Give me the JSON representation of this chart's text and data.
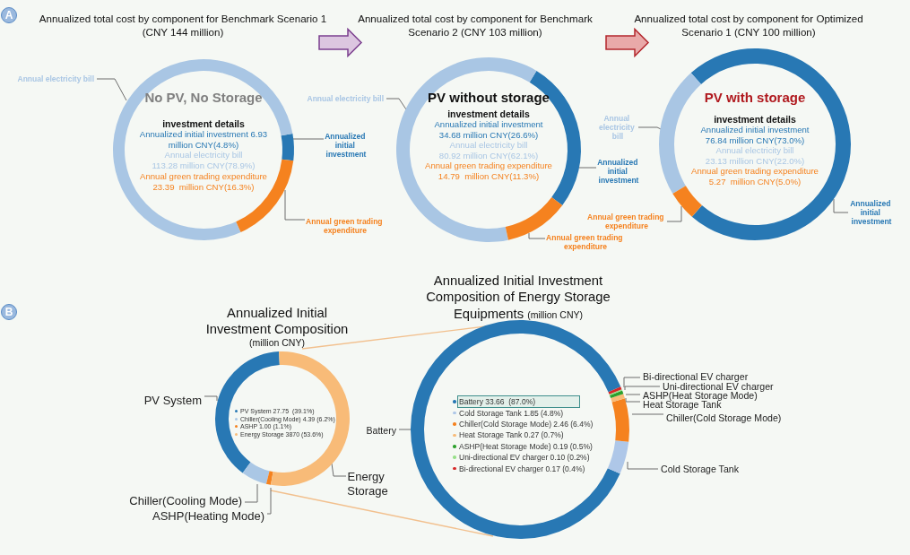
{
  "chart_data": [
    {
      "type": "donut",
      "title": "Annualized total cost by component for Benchmark Scenario 1 (CNY 144 million)",
      "categories": [
        "Annualized initial investment",
        "Annual electricity bill",
        "Annual green trading expenditure"
      ],
      "values": [
        4.8,
        78.9,
        16.3
      ],
      "colors": [
        "#2878b4",
        "#a9c6e4",
        "#f5821f"
      ],
      "annotations": [
        "A",
        "No PV, No Storage",
        "investment details",
        "Annualized initial investment 6.93 million CNY(4.8%)",
        "Annual electricity bill 113.28 million CNY(78.9%)",
        "Annual green trading expenditure 23.39  million CNY(16.3%)"
      ]
    },
    {
      "type": "donut",
      "title": "Annualized total cost by component for Benchmark Scenario 2 (CNY 103 million)",
      "categories": [
        "Annualized initial investment",
        "Annual electricity bill",
        "Annual green trading expenditure"
      ],
      "values": [
        26.6,
        62.1,
        11.3
      ],
      "colors": [
        "#2878b4",
        "#a9c6e4",
        "#f5821f"
      ],
      "annotations": [
        "PV without storage",
        "investment details",
        "Annualized initial investment 34.68 million CNY(26.6%)",
        "Annual electricity bill 80.92 million CNY(62.1%)",
        "Annual green trading expenditure 14.79  million CNY(11.3%)"
      ]
    },
    {
      "type": "donut",
      "title": "Annualized total cost by component for Optimized Scenario 1 (CNY 100 million)",
      "categories": [
        "Annualized initial investment",
        "Annual electricity bill",
        "Annual green trading expenditure"
      ],
      "values": [
        73.0,
        22.0,
        5.0
      ],
      "colors": [
        "#2878b4",
        "#a9c6e4",
        "#f5821f"
      ],
      "annotations": [
        "PV with storage",
        "investment details",
        "Annualized initial investment 76.84 million CNY(73.0%)",
        "Annual electricity bill 23.13 million CNY(22.0%)",
        "Annual green trading expenditure 5.27  million CNY(5.0%)"
      ]
    },
    {
      "type": "donut",
      "title": "Annualized Initial Investment Composition",
      "subtitle": "(million CNY)",
      "categories": [
        "PV System",
        "Chiller(Cooling Mode)",
        "ASHP(Heating Mode)",
        "Energy Storage"
      ],
      "values": [
        39.1,
        6.2,
        1.1,
        53.6
      ],
      "colors": [
        "#2878b4",
        "#aac7e5",
        "#f5821f",
        "#f8bb78"
      ],
      "annotations": [
        "B",
        "PV System 27.75  (39.1%)",
        "Chiller(Cooling Mode) 4.39 (6.2%)",
        "ASHP 1.00 (1.1%)",
        "Energy Storage 3870 (53.6%)"
      ]
    },
    {
      "type": "donut",
      "title": "Annualized Initial Investment Composition of Energy Storage Equipments (million CNY)",
      "categories": [
        "Battery",
        "Cold Storage Tank",
        "Chiller(Cold Storage Mode)",
        "Heat Storage Tank",
        "ASHP(Heat Storage Mode)",
        "Uni-directional EV charger",
        "Bi-directional EV charger"
      ],
      "values": [
        87.0,
        4.8,
        6.4,
        0.7,
        0.5,
        0.2,
        0.4
      ],
      "colors": [
        "#2878b4",
        "#aec7e8",
        "#f5821f",
        "#f8bb78",
        "#2ca02c",
        "#98df8a",
        "#d62728"
      ],
      "annotations": [
        "Battery 33.66  (87.0%)",
        "Cold Storage Tank 1.85 (4.8%)",
        "Chiller(Cold Storage Mode) 2.46 (6.4%)",
        "Heat Storage Tank 0.27 (0.7%)",
        "ASHP(Heat Storage Mode) 0.19 (0.5%)",
        "Uni-directional EV charger 0.10 (0.2%)",
        "Bi-directional EV charger 0.17 (0.4%)"
      ]
    }
  ]
}
